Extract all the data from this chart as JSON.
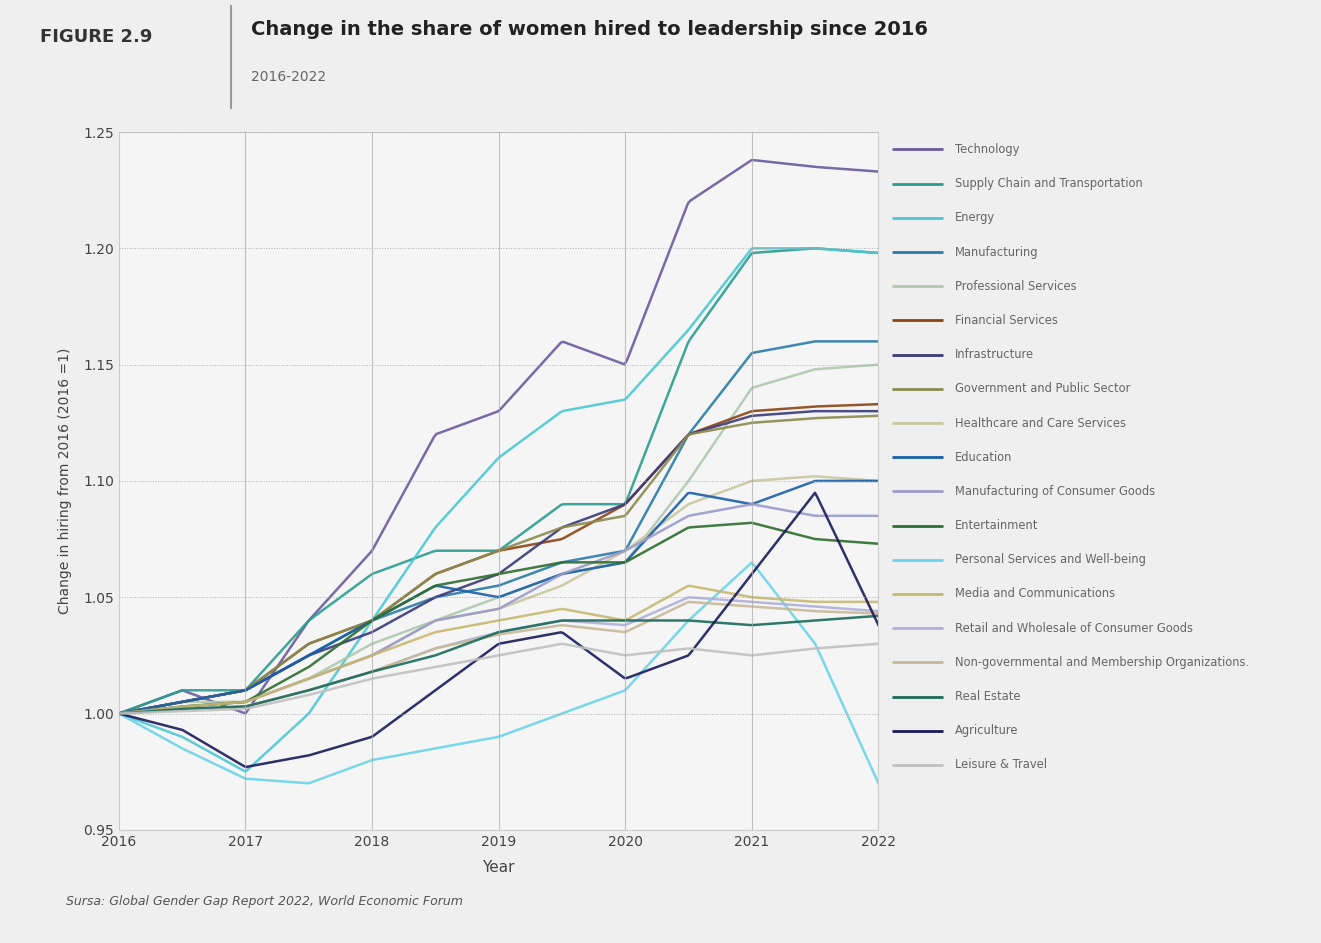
{
  "title": "Change in the share of women hired to leadership since 2016",
  "subtitle": "2016-2022",
  "figure_label": "FIGURE 2.9",
  "source": "Sursa: Global Gender Gap Report 2022, World Economic Forum",
  "xlabel": "Year",
  "ylabel": "Change in hiring from 2016 (2016 =1)",
  "ylim": [
    0.95,
    1.25
  ],
  "xlim": [
    2016,
    2022
  ],
  "background_color": "#efefef",
  "plot_bg_color": "#f5f5f5",
  "series": [
    {
      "name": "Technology",
      "color": "#6b5b9e",
      "lw": 1.8,
      "x": [
        2016,
        2016.5,
        2017,
        2017.5,
        2018,
        2018.5,
        2019,
        2019.5,
        2020,
        2020.5,
        2021,
        2021.5,
        2022
      ],
      "y": [
        1.0,
        1.01,
        1.0,
        1.04,
        1.07,
        1.12,
        1.13,
        1.16,
        1.15,
        1.22,
        1.238,
        1.235,
        1.233
      ]
    },
    {
      "name": "Supply Chain and Transportation",
      "color": "#2a9d8f",
      "lw": 1.8,
      "x": [
        2016,
        2016.5,
        2017,
        2017.5,
        2018,
        2018.5,
        2019,
        2019.5,
        2020,
        2020.5,
        2021,
        2021.5,
        2022
      ],
      "y": [
        1.0,
        1.01,
        1.01,
        1.04,
        1.06,
        1.07,
        1.07,
        1.09,
        1.09,
        1.16,
        1.198,
        1.2,
        1.198
      ]
    },
    {
      "name": "Energy",
      "color": "#4bc8d4",
      "lw": 1.8,
      "x": [
        2016,
        2016.5,
        2017,
        2017.5,
        2018,
        2018.5,
        2019,
        2019.5,
        2020,
        2020.5,
        2021,
        2021.5,
        2022
      ],
      "y": [
        1.0,
        0.99,
        0.975,
        1.0,
        1.04,
        1.08,
        1.11,
        1.13,
        1.135,
        1.165,
        1.2,
        1.2,
        1.198
      ]
    },
    {
      "name": "Manufacturing",
      "color": "#2a7ca8",
      "lw": 1.8,
      "x": [
        2016,
        2016.5,
        2017,
        2017.5,
        2018,
        2018.5,
        2019,
        2019.5,
        2020,
        2020.5,
        2021,
        2021.5,
        2022
      ],
      "y": [
        1.0,
        1.005,
        1.01,
        1.025,
        1.04,
        1.05,
        1.055,
        1.065,
        1.07,
        1.12,
        1.155,
        1.16,
        1.16
      ]
    },
    {
      "name": "Professional Services",
      "color": "#b0c8b0",
      "lw": 1.8,
      "x": [
        2016,
        2016.5,
        2017,
        2017.5,
        2018,
        2018.5,
        2019,
        2019.5,
        2020,
        2020.5,
        2021,
        2021.5,
        2022
      ],
      "y": [
        1.0,
        1.005,
        1.005,
        1.015,
        1.03,
        1.04,
        1.05,
        1.06,
        1.065,
        1.1,
        1.14,
        1.148,
        1.15
      ]
    },
    {
      "name": "Financial Services",
      "color": "#8b4513",
      "lw": 1.8,
      "x": [
        2016,
        2016.5,
        2017,
        2017.5,
        2018,
        2018.5,
        2019,
        2019.5,
        2020,
        2020.5,
        2021,
        2021.5,
        2022
      ],
      "y": [
        1.0,
        1.005,
        1.01,
        1.03,
        1.04,
        1.06,
        1.07,
        1.075,
        1.09,
        1.12,
        1.13,
        1.132,
        1.133
      ]
    },
    {
      "name": "Infrastructure",
      "color": "#3b3b7a",
      "lw": 1.8,
      "x": [
        2016,
        2016.5,
        2017,
        2017.5,
        2018,
        2018.5,
        2019,
        2019.5,
        2020,
        2020.5,
        2021,
        2021.5,
        2022
      ],
      "y": [
        1.0,
        1.005,
        1.01,
        1.025,
        1.035,
        1.05,
        1.06,
        1.08,
        1.09,
        1.12,
        1.128,
        1.13,
        1.13
      ]
    },
    {
      "name": "Government and Public Sector",
      "color": "#8b8b4f",
      "lw": 1.8,
      "x": [
        2016,
        2016.5,
        2017,
        2017.5,
        2018,
        2018.5,
        2019,
        2019.5,
        2020,
        2020.5,
        2021,
        2021.5,
        2022
      ],
      "y": [
        1.0,
        1.005,
        1.01,
        1.03,
        1.04,
        1.06,
        1.07,
        1.08,
        1.085,
        1.12,
        1.125,
        1.127,
        1.128
      ]
    },
    {
      "name": "Healthcare and Care Services",
      "color": "#c8c8a0",
      "lw": 1.8,
      "x": [
        2016,
        2016.5,
        2017,
        2017.5,
        2018,
        2018.5,
        2019,
        2019.5,
        2020,
        2020.5,
        2021,
        2021.5,
        2022
      ],
      "y": [
        1.0,
        1.003,
        1.005,
        1.015,
        1.025,
        1.04,
        1.045,
        1.055,
        1.07,
        1.09,
        1.1,
        1.102,
        1.1
      ]
    },
    {
      "name": "Education",
      "color": "#1a5fa8",
      "lw": 1.8,
      "x": [
        2016,
        2016.5,
        2017,
        2017.5,
        2018,
        2018.5,
        2019,
        2019.5,
        2020,
        2020.5,
        2021,
        2021.5,
        2022
      ],
      "y": [
        1.0,
        1.005,
        1.01,
        1.025,
        1.04,
        1.055,
        1.05,
        1.06,
        1.065,
        1.095,
        1.09,
        1.1,
        1.1
      ]
    },
    {
      "name": "Manufacturing of Consumer Goods",
      "color": "#9b9bcc",
      "lw": 1.8,
      "x": [
        2016,
        2016.5,
        2017,
        2017.5,
        2018,
        2018.5,
        2019,
        2019.5,
        2020,
        2020.5,
        2021,
        2021.5,
        2022
      ],
      "y": [
        1.0,
        1.003,
        1.005,
        1.015,
        1.025,
        1.04,
        1.045,
        1.06,
        1.07,
        1.085,
        1.09,
        1.085,
        1.085
      ]
    },
    {
      "name": "Entertainment",
      "color": "#2e6e2e",
      "lw": 1.8,
      "x": [
        2016,
        2016.5,
        2017,
        2017.5,
        2018,
        2018.5,
        2019,
        2019.5,
        2020,
        2020.5,
        2021,
        2021.5,
        2022
      ],
      "y": [
        1.0,
        1.003,
        1.005,
        1.02,
        1.04,
        1.055,
        1.06,
        1.065,
        1.065,
        1.08,
        1.082,
        1.075,
        1.073
      ]
    },
    {
      "name": "Personal Services and Well-being",
      "color": "#6bd4e8",
      "lw": 1.8,
      "x": [
        2016,
        2016.5,
        2017,
        2017.5,
        2018,
        2018.5,
        2019,
        2019.5,
        2020,
        2020.5,
        2021,
        2021.5,
        2022
      ],
      "y": [
        1.0,
        0.985,
        0.972,
        0.97,
        0.98,
        0.985,
        0.99,
        1.0,
        1.01,
        1.04,
        1.065,
        1.03,
        0.97
      ]
    },
    {
      "name": "Media and Communications",
      "color": "#c8b870",
      "lw": 1.8,
      "x": [
        2016,
        2016.5,
        2017,
        2017.5,
        2018,
        2018.5,
        2019,
        2019.5,
        2020,
        2020.5,
        2021,
        2021.5,
        2022
      ],
      "y": [
        1.0,
        1.003,
        1.005,
        1.015,
        1.025,
        1.035,
        1.04,
        1.045,
        1.04,
        1.055,
        1.05,
        1.048,
        1.048
      ]
    },
    {
      "name": "Retail and Wholesale of Consumer Goods",
      "color": "#b0b0d8",
      "lw": 1.8,
      "x": [
        2016,
        2016.5,
        2017,
        2017.5,
        2018,
        2018.5,
        2019,
        2019.5,
        2020,
        2020.5,
        2021,
        2021.5,
        2022
      ],
      "y": [
        1.0,
        1.002,
        1.003,
        1.01,
        1.018,
        1.028,
        1.035,
        1.04,
        1.038,
        1.05,
        1.048,
        1.046,
        1.044
      ]
    },
    {
      "name": "Non-governmental and Membership Organizations.",
      "color": "#c8b898",
      "lw": 1.8,
      "x": [
        2016,
        2016.5,
        2017,
        2017.5,
        2018,
        2018.5,
        2019,
        2019.5,
        2020,
        2020.5,
        2021,
        2021.5,
        2022
      ],
      "y": [
        1.0,
        1.002,
        1.003,
        1.01,
        1.018,
        1.028,
        1.034,
        1.038,
        1.035,
        1.048,
        1.046,
        1.044,
        1.043
      ]
    },
    {
      "name": "Real Estate",
      "color": "#1a6b5a",
      "lw": 1.8,
      "x": [
        2016,
        2016.5,
        2017,
        2017.5,
        2018,
        2018.5,
        2019,
        2019.5,
        2020,
        2020.5,
        2021,
        2021.5,
        2022
      ],
      "y": [
        1.0,
        1.002,
        1.003,
        1.01,
        1.018,
        1.025,
        1.035,
        1.04,
        1.04,
        1.04,
        1.038,
        1.04,
        1.042
      ]
    },
    {
      "name": "Agriculture",
      "color": "#1a1a5a",
      "lw": 1.8,
      "x": [
        2016,
        2016.5,
        2017,
        2017.5,
        2018,
        2018.5,
        2019,
        2019.5,
        2020,
        2020.5,
        2021,
        2021.5,
        2022
      ],
      "y": [
        1.0,
        0.993,
        0.977,
        0.982,
        0.99,
        1.01,
        1.03,
        1.035,
        1.015,
        1.025,
        1.06,
        1.095,
        1.038
      ]
    },
    {
      "name": "Leisure & Travel",
      "color": "#c0c0c0",
      "lw": 1.8,
      "x": [
        2016,
        2016.5,
        2017,
        2017.5,
        2018,
        2018.5,
        2019,
        2019.5,
        2020,
        2020.5,
        2021,
        2021.5,
        2022
      ],
      "y": [
        1.0,
        1.001,
        1.002,
        1.008,
        1.015,
        1.02,
        1.025,
        1.03,
        1.025,
        1.028,
        1.025,
        1.028,
        1.03
      ]
    }
  ],
  "vlines": [
    2017,
    2018,
    2019,
    2020,
    2021
  ],
  "xticks": [
    2016,
    2017,
    2018,
    2019,
    2020,
    2021,
    2022
  ],
  "yticks": [
    0.95,
    1.0,
    1.05,
    1.1,
    1.15,
    1.2,
    1.25
  ]
}
